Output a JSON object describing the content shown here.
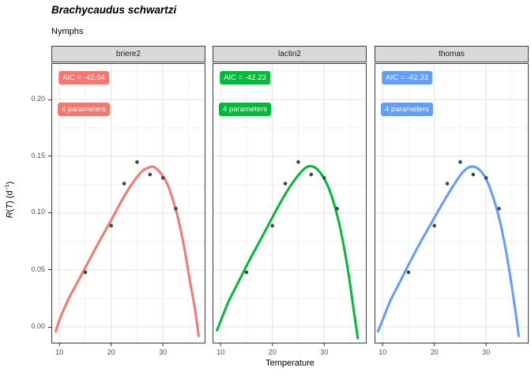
{
  "title": "Brachycaudus schwartzi",
  "subtitle": "Nymphs",
  "axes": {
    "x_label": "Temperature",
    "y_ticks": [
      "0.20",
      "0.15",
      "0.10",
      "0.05",
      "0.00"
    ],
    "y_label": {
      "r": "R",
      "op": "(",
      "t": "T",
      "cp": ")",
      "unit": " (d",
      "sup": "−1",
      "close": ")"
    }
  },
  "panels": [
    {
      "model": "briere2",
      "aic_label": "AIC = -42.64",
      "params_label": "4 parameters",
      "color": "#F8766D"
    },
    {
      "model": "lactin2",
      "aic_label": "AIC = -42.23",
      "params_label": "4 parameters",
      "color": "#00BA38"
    },
    {
      "model": "thomas",
      "aic_label": "AIC = -42.33",
      "params_label": "4 parameters",
      "color": "#619CFF"
    }
  ],
  "chart_data": {
    "type": "scatter+line",
    "title": "Brachycaudus schwartzi",
    "subtitle": "Nymphs",
    "xlabel": "Temperature",
    "ylabel": "R(T) (d^-1)",
    "facets": [
      "briere2",
      "lactin2",
      "thomas"
    ],
    "xlim": [
      8.4,
      38.2
    ],
    "ylim": [
      -0.015,
      0.232
    ],
    "x_ticks": [
      10,
      20,
      30
    ],
    "x_minor": [
      15,
      25,
      35
    ],
    "y_ticks_num": [
      0,
      0.05,
      0.1,
      0.15,
      0.2
    ],
    "y_minor": [
      0.025,
      0.075,
      0.125,
      0.175,
      0.225
    ],
    "grid": true,
    "legend": "none",
    "point_color": "#3A4750",
    "points": {
      "temperature": [
        15,
        20,
        22.5,
        25,
        27.5,
        30,
        32.5
      ],
      "rate": [
        0.048,
        0.089,
        0.126,
        0.145,
        0.134,
        0.131,
        0.104
      ]
    },
    "curves": [
      {
        "name": "briere2",
        "color": "#F8766D",
        "aic": -42.64,
        "n_parameters": 4,
        "x": [
          9.3,
          10,
          11.7,
          13.7,
          15.8,
          17.8,
          19.9,
          21.9,
          23.9,
          26,
          27.2,
          28,
          29,
          30.1,
          31,
          32.1,
          33,
          34.1,
          35,
          36.2,
          36.9
        ],
        "y": [
          -0.004,
          0.006,
          0.024,
          0.041,
          0.059,
          0.076,
          0.093,
          0.11,
          0.125,
          0.137,
          0.14,
          0.141,
          0.138,
          0.132,
          0.124,
          0.109,
          0.094,
          0.07,
          0.046,
          0.015,
          -0.008
        ]
      },
      {
        "name": "lactin2",
        "color": "#00BA38",
        "aic": -42.23,
        "n_parameters": 4,
        "x": [
          9.3,
          10,
          11.5,
          13.5,
          15.5,
          17.5,
          19.5,
          21.5,
          23.5,
          25.5,
          26.8,
          27.8,
          28.8,
          29.8,
          30.8,
          31.8,
          32.8,
          33.8,
          34.8,
          35.8,
          36.5
        ],
        "y": [
          -0.003,
          0.005,
          0.022,
          0.04,
          0.058,
          0.075,
          0.092,
          0.109,
          0.124,
          0.136,
          0.141,
          0.141,
          0.138,
          0.132,
          0.123,
          0.11,
          0.093,
          0.071,
          0.044,
          0.012,
          -0.01
        ]
      },
      {
        "name": "thomas",
        "color": "#619CFF",
        "aic": -42.33,
        "n_parameters": 4,
        "x": [
          9.1,
          10,
          11.5,
          13.5,
          15.5,
          17.5,
          19.5,
          21.5,
          23.5,
          25.3,
          26.5,
          27.5,
          28.5,
          29.5,
          30.5,
          31.5,
          32.5,
          33.5,
          34.5,
          35.5,
          36.3
        ],
        "y": [
          -0.004,
          0.006,
          0.023,
          0.041,
          0.059,
          0.076,
          0.092,
          0.108,
          0.123,
          0.135,
          0.14,
          0.141,
          0.139,
          0.134,
          0.125,
          0.112,
          0.096,
          0.075,
          0.049,
          0.019,
          -0.008
        ]
      }
    ]
  }
}
